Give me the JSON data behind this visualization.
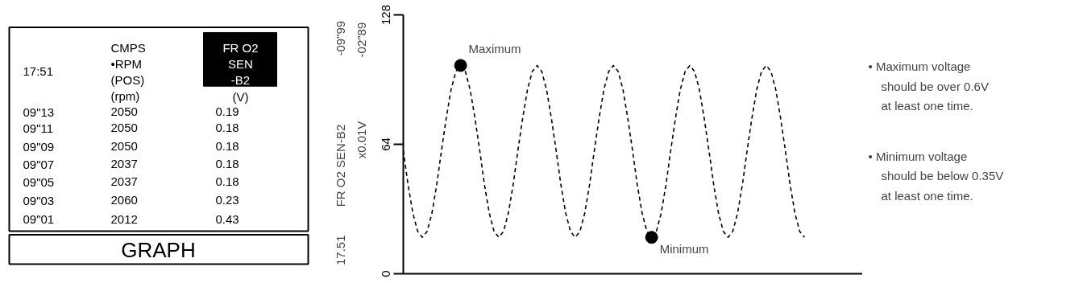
{
  "chart_data": [
    {
      "type": "other",
      "annotations": [
        "17:51",
        "CMPS",
        "•RPM",
        "(POS)",
        "(rpm)",
        "FR O2",
        "SEN",
        "-B2",
        "(V)",
        "09\"13",
        "2050",
        "0.19",
        "09\"11",
        "2050",
        "0.18",
        "09\"09",
        "2050",
        "0.18",
        "09\"07",
        "2037",
        "0.18",
        "09\"05",
        "2037",
        "0.18",
        "09\"03",
        "2060",
        "0.23",
        "09\"01",
        "2012",
        "0.43",
        "GRAPH"
      ]
    },
    {
      "type": "line",
      "categories": [
        null,
        null,
        null,
        null,
        null,
        null,
        null,
        null,
        null,
        null,
        null,
        null,
        null,
        null,
        null,
        null,
        null,
        null,
        null,
        null,
        null,
        null,
        null,
        null,
        null,
        null,
        null,
        null,
        null,
        null,
        null,
        null,
        null,
        null,
        null,
        null,
        null,
        null,
        null,
        null,
        null,
        null,
        null,
        null,
        null,
        null,
        null,
        null,
        null,
        null,
        null,
        null,
        null,
        null,
        null,
        null,
        null,
        null,
        null,
        null,
        null,
        null,
        null,
        null,
        null,
        null,
        null,
        null,
        null,
        null,
        null,
        null,
        null,
        null,
        null,
        null,
        null,
        null,
        null,
        null,
        null,
        null,
        null,
        null,
        null
      ],
      "series": [
        {
          "type": "line",
          "color": "#000000",
          "line_style": "dashed",
          "marker": "none",
          "values": [
            61,
            44,
            30,
            21,
            18,
            21,
            30,
            44,
            61,
            77,
            91,
            100,
            103,
            100,
            91,
            77,
            61,
            44,
            30,
            21,
            18,
            21,
            30,
            44,
            61,
            77,
            91,
            100,
            103,
            100,
            91,
            77,
            61,
            44,
            30,
            21,
            18,
            21,
            30,
            44,
            61,
            77,
            91,
            100,
            103,
            100,
            91,
            77,
            61,
            44,
            30,
            21,
            18,
            21,
            30,
            44,
            61,
            77,
            91,
            100,
            103,
            100,
            91,
            77,
            61,
            44,
            30,
            21,
            18,
            21,
            30,
            44,
            61,
            77,
            91,
            100,
            103,
            100,
            91,
            77,
            61,
            44,
            30,
            21,
            18
          ]
        },
        {
          "type": "scatter",
          "color": "#000000",
          "marker": "circle",
          "values": [
            null,
            null,
            null,
            null,
            null,
            null,
            null,
            null,
            null,
            null,
            null,
            null,
            103,
            null,
            null,
            null,
            null,
            null,
            null,
            null,
            null,
            null,
            null,
            null,
            null,
            null,
            null,
            null,
            null,
            null,
            null,
            null,
            null,
            null,
            null,
            null,
            null,
            null,
            null,
            null,
            null,
            null,
            null,
            null,
            null,
            null,
            null,
            null,
            null,
            null,
            null,
            null,
            18,
            null,
            null,
            null,
            null,
            null,
            null,
            null,
            null,
            null,
            null,
            null,
            null,
            null,
            null,
            null,
            null,
            null,
            null,
            null,
            null,
            null,
            null,
            null,
            null,
            null,
            null,
            null,
            null,
            null,
            null,
            null,
            null
          ]
        }
      ],
      "ylim": [
        0,
        128
      ],
      "yticks": [
        0,
        64,
        128
      ],
      "tick_labels": "y",
      "ylabel": "FR O2 SEN-B2",
      "annotations": [
        "Maximum",
        "Minimum",
        "-09\"99",
        "-02\"89",
        "x0.01V",
        "17.51",
        "• Maximum voltage should be over 0.6V at least one time.",
        "• Minimum voltage should be below 0.35V at least one time."
      ]
    }
  ]
}
